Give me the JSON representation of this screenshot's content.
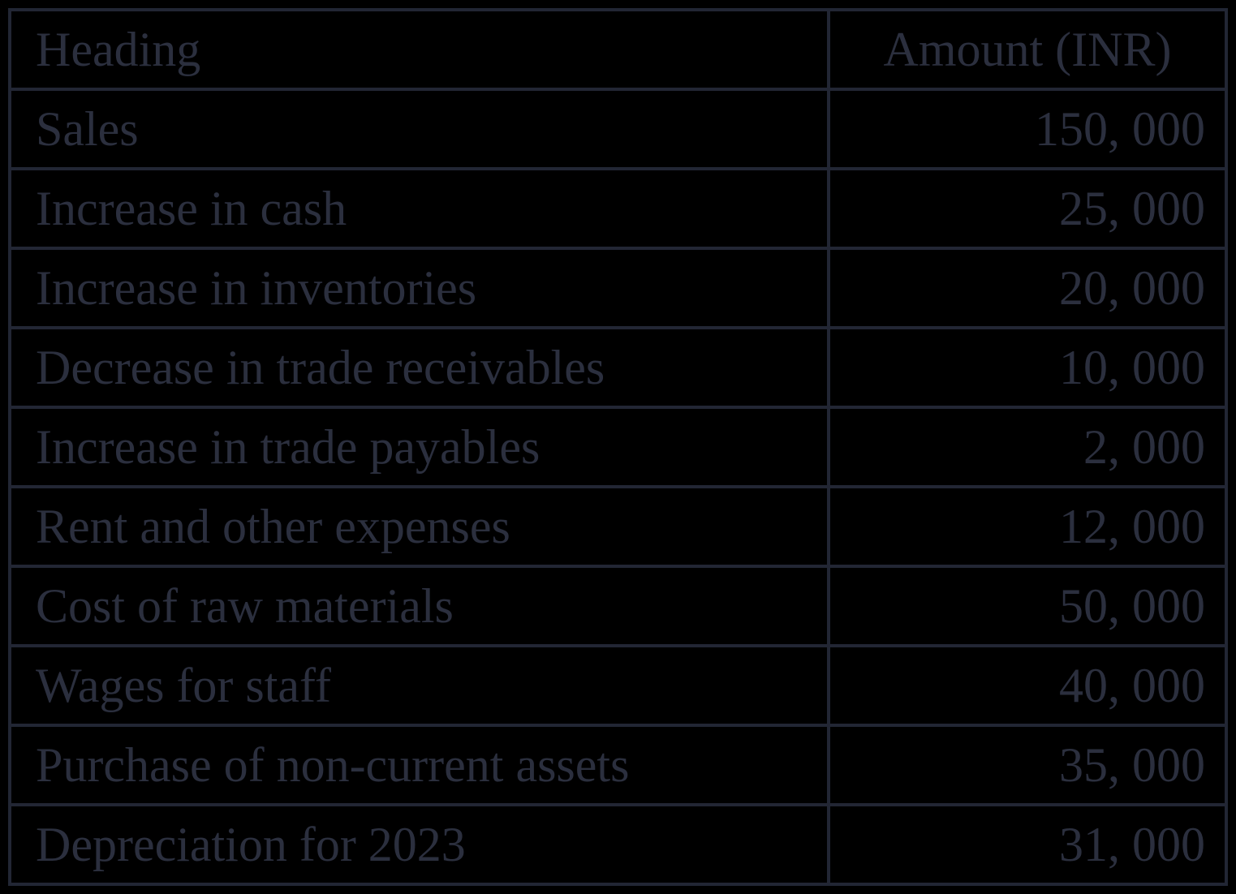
{
  "table": {
    "columns": [
      {
        "label": "Heading"
      },
      {
        "label": "Amount (INR)"
      }
    ],
    "rows": [
      {
        "heading": "Sales",
        "amount": "150, 000"
      },
      {
        "heading": "Increase in cash",
        "amount": "25, 000"
      },
      {
        "heading": "Increase in inventories",
        "amount": "20, 000"
      },
      {
        "heading": "Decrease in trade receivables",
        "amount": "10, 000"
      },
      {
        "heading": "Increase in trade payables",
        "amount": "2, 000"
      },
      {
        "heading": "Rent and other expenses",
        "amount": "12, 000"
      },
      {
        "heading": "Cost of raw materials",
        "amount": "50, 000"
      },
      {
        "heading": "Wages for staff",
        "amount": "40, 000"
      },
      {
        "heading": "Purchase of non-current assets",
        "amount": "35, 000"
      },
      {
        "heading": "Depreciation for 2023",
        "amount": "31, 000"
      }
    ],
    "colors": {
      "background": "#000000",
      "text": "#2b2f3e",
      "border": "#222634"
    }
  }
}
